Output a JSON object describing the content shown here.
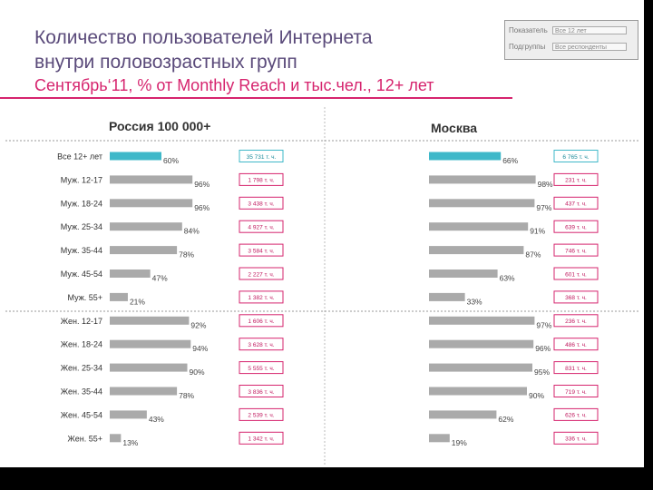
{
  "title_line1": "Количество пользователей Интернета",
  "title_line2": "внутри половозрастных групп",
  "subtitle": "Сентябрь‘11, % от Monthly Reach и тыс.чел., 12+ лет",
  "legend": {
    "row1_label": "Показатель",
    "row1_value": "Все 12 лет",
    "row2_label": "Подгруппы",
    "row2_value": "Все респонденты"
  },
  "colors": {
    "highlight_bar": "#3fb8c9",
    "bar": "#aaaaaa",
    "highlight_box": "#3fb8c9",
    "box": "#d6246e"
  },
  "chart_data": {
    "type": "bar",
    "categories": [
      "Все 12+ лет",
      "Муж. 12-17",
      "Муж. 18-24",
      "Муж. 25-34",
      "Муж. 35-44",
      "Муж. 45-54",
      "Муж. 55+",
      "Жен. 12-17",
      "Жен. 18-24",
      "Жен. 25-34",
      "Жен. 35-44",
      "Жен. 45-54",
      "Жен. 55+"
    ],
    "panels": [
      {
        "title": "Россия 100 000+",
        "values": [
          60,
          96,
          96,
          84,
          78,
          47,
          21,
          92,
          94,
          90,
          78,
          43,
          13
        ],
        "value_labels": [
          "60%",
          "96%",
          "96%",
          "84%",
          "78%",
          "47%",
          "21%",
          "92%",
          "94%",
          "90%",
          "78%",
          "43%",
          "13%"
        ],
        "counts": [
          "35 731 т. ч.",
          "1 798 т. ч.",
          "3 438 т. ч.",
          "4 927 т. ч.",
          "3 584 т. ч.",
          "2 227 т. ч.",
          "1 382 т. ч.",
          "1 606 т. ч.",
          "3 628 т. ч.",
          "5 555 т. ч.",
          "3 836 т. ч.",
          "2 539 т. ч.",
          "1 342 т. ч."
        ]
      },
      {
        "title": "Москва",
        "values": [
          66,
          98,
          97,
          91,
          87,
          63,
          33,
          97,
          96,
          95,
          90,
          62,
          19
        ],
        "value_labels": [
          "66%",
          "98%",
          "97%",
          "91%",
          "87%",
          "63%",
          "33%",
          "97%",
          "96%",
          "95%",
          "90%",
          "62%",
          "19%"
        ],
        "counts": [
          "6 765 т. ч.",
          "231 т. ч.",
          "437 т. ч.",
          "639 т. ч.",
          "746 т. ч.",
          "601 т. ч.",
          "368 т. ч.",
          "236 т. ч.",
          "486 т. ч.",
          "831 т. ч.",
          "719 т. ч.",
          "626 т. ч.",
          "336 т. ч."
        ]
      }
    ],
    "xlim": [
      0,
      100
    ],
    "xlabel": "",
    "ylabel": ""
  }
}
